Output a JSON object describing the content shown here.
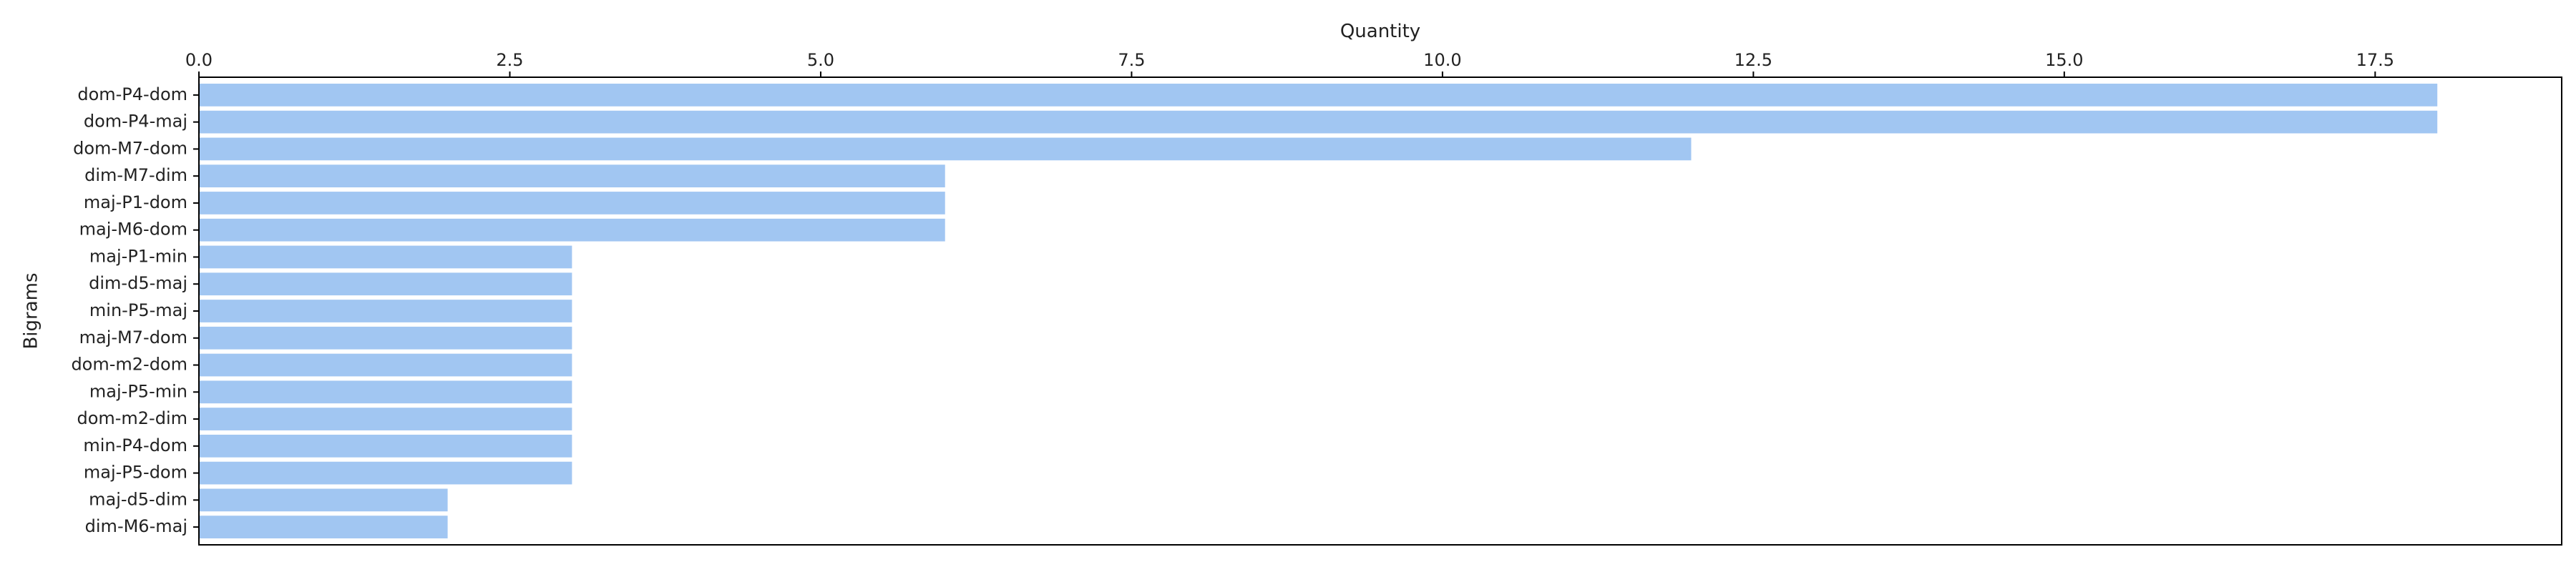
{
  "chart_data": {
    "type": "bar",
    "orientation": "horizontal",
    "xlabel": "Quantity",
    "xlabel_position": "top",
    "ylabel": "Bigrams",
    "xlim": [
      0,
      19
    ],
    "xticks": [
      "0.0",
      "2.5",
      "5.0",
      "7.5",
      "10.0",
      "12.5",
      "15.0",
      "17.5"
    ],
    "grid": false,
    "bar_color": "#a1c6f2",
    "categories": [
      "dom-P4-dom",
      "dom-P4-maj",
      "dom-M7-dom",
      "dim-M7-dim",
      "maj-P1-dom",
      "maj-M6-dom",
      "maj-P1-min",
      "dim-d5-maj",
      "min-P5-maj",
      "maj-M7-dom",
      "dom-m2-dom",
      "maj-P5-min",
      "dom-m2-dim",
      "min-P4-dom",
      "maj-P5-dom",
      "maj-d5-dim",
      "dim-M6-maj"
    ],
    "values": [
      18,
      18,
      12,
      6,
      6,
      6,
      3,
      3,
      3,
      3,
      3,
      3,
      3,
      3,
      3,
      2,
      2
    ]
  }
}
